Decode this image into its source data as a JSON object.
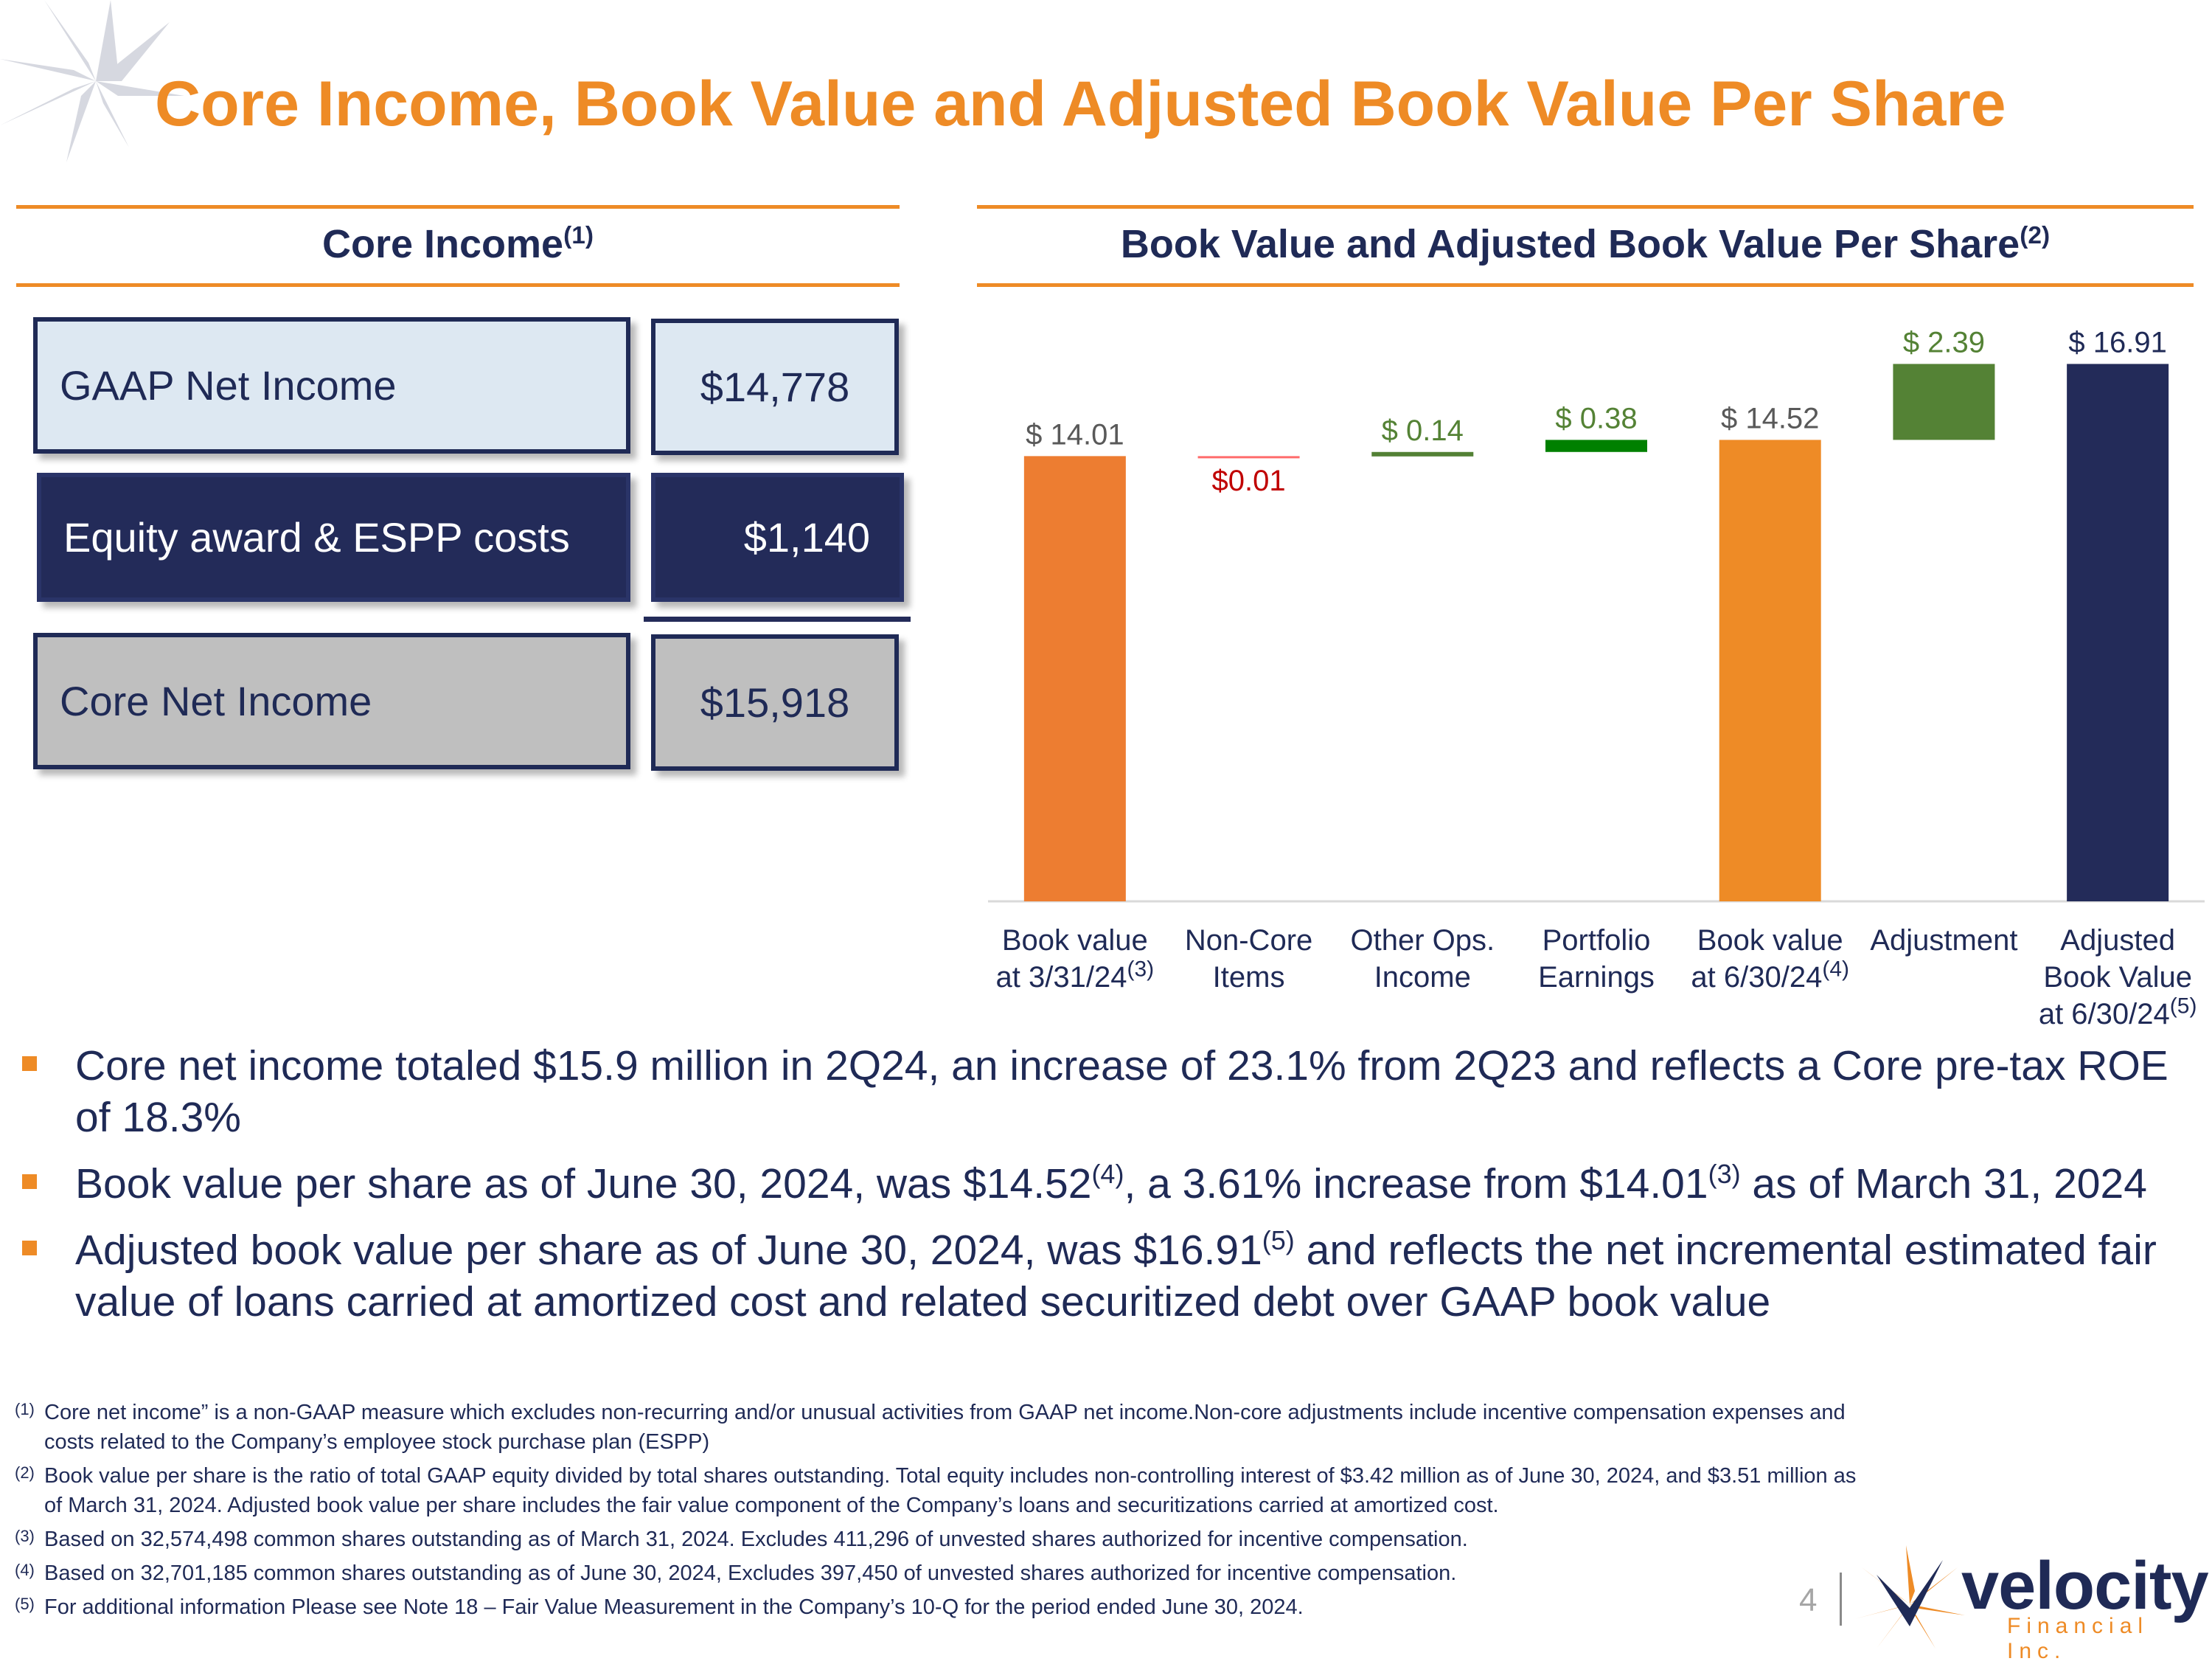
{
  "page": {
    "title": "Core Income, Book Value and Adjusted Book Value Per Share",
    "page_number": "4"
  },
  "core_income": {
    "heading": "Core Income",
    "heading_note": "(1)",
    "rows": [
      {
        "label": "GAAP Net Income",
        "value": "$14,778"
      },
      {
        "label": "Equity award & ESPP costs",
        "value": "$1,140"
      },
      {
        "label": "Core Net Income",
        "value": "$15,918"
      }
    ]
  },
  "book_value": {
    "heading": "Book Value and Adjusted Book Value Per Share",
    "heading_note": "(2)",
    "x_labels": [
      {
        "lines": [
          "Book value",
          "at 3/31/24"
        ],
        "note": "(3)"
      },
      {
        "lines": [
          "Non-Core",
          "Items"
        ],
        "note": ""
      },
      {
        "lines": [
          "Other Ops.",
          "Income"
        ],
        "note": ""
      },
      {
        "lines": [
          "Portfolio",
          "Earnings"
        ],
        "note": ""
      },
      {
        "lines": [
          "Book value",
          "at 6/30/24"
        ],
        "note": "(4)"
      },
      {
        "lines": [
          "Adjustment"
        ],
        "note": ""
      },
      {
        "lines": [
          "Adjusted",
          "Book Value",
          "at 6/30/24"
        ],
        "note": "(5)"
      }
    ]
  },
  "chart_data": {
    "type": "bar",
    "subtype": "waterfall",
    "title": "Book Value and Adjusted Book Value Per Share",
    "categories": [
      "Book value at 3/31/24",
      "Non-Core Items",
      "Other Ops. Income",
      "Portfolio Earnings",
      "Book value at 6/30/24",
      "Adjustment",
      "Adjusted Book Value at 6/30/24"
    ],
    "bars": [
      {
        "category": "Book value at 3/31/24",
        "kind": "total",
        "value": 14.01,
        "label": "$ 14.01",
        "color": "#ed7d31",
        "label_color": "#595959"
      },
      {
        "category": "Non-Core Items",
        "kind": "delta",
        "value": -0.01,
        "label": "$0.01",
        "color": "#ff6b6b",
        "label_color": "#c00000"
      },
      {
        "category": "Other Ops. Income",
        "kind": "delta",
        "value": 0.14,
        "label": "$ 0.14",
        "color": "#538135",
        "label_color": "#548235"
      },
      {
        "category": "Portfolio Earnings",
        "kind": "delta",
        "value": 0.38,
        "label": "$ 0.38",
        "color": "#008000",
        "label_color": "#548235"
      },
      {
        "category": "Book value at 6/30/24",
        "kind": "total",
        "value": 14.52,
        "label": "$ 14.52",
        "color": "#ee8b26",
        "label_color": "#595959"
      },
      {
        "category": "Adjustment",
        "kind": "delta",
        "value": 2.39,
        "label": "$ 2.39",
        "color": "#548235",
        "label_color": "#548235"
      },
      {
        "category": "Adjusted Book Value at 6/30/24",
        "kind": "total",
        "value": 16.91,
        "label": "$ 16.91",
        "color": "#232b59",
        "label_color": "#1f2a56"
      }
    ],
    "ylim": [
      0,
      17.5
    ],
    "grid": false,
    "legend": "none"
  },
  "bullets": [
    {
      "segments": [
        {
          "t": "Core net income totaled $15.9 million in 2Q24, an increase of 23.1% from 2Q23 and reflects a Core pre-tax ROE of 18.3%"
        }
      ]
    },
    {
      "segments": [
        {
          "t": "Book value per share as of June 30, 2024, was $14.52"
        },
        {
          "t": "(4)",
          "sup": true
        },
        {
          "t": ", a 3.61% increase from $14.01"
        },
        {
          "t": "(3)",
          "sup": true
        },
        {
          "t": " as of March 31, 2024"
        }
      ]
    },
    {
      "segments": [
        {
          "t": "Adjusted book value per share as of June 30, 2024, was $16.91"
        },
        {
          "t": "(5)",
          "sup": true
        },
        {
          "t": " and reflects the net incremental estimated fair value of loans carried at amortized cost and related securitized debt over GAAP book value"
        }
      ]
    }
  ],
  "footnotes": [
    {
      "num": "(1)",
      "text": "Core net income” is a non-GAAP measure which excludes non-recurring and/or unusual activities from GAAP net income.Non-core adjustments include incentive compensation expenses and costs related to the Company’s employee stock purchase plan (ESPP)"
    },
    {
      "num": "(2)",
      "text": "Book value per share is the ratio of total GAAP equity divided by total shares outstanding. Total equity includes non-controlling interest of $3.42 million as of June 30, 2024, and $3.51 million as of March 31, 2024. Adjusted book value per share includes the fair value component of the Company’s loans and securitizations carried at amortized cost."
    },
    {
      "num": "(3)",
      "text": "Based on 32,574,498 common shares outstanding as of March 31, 2024. Excludes 411,296 of unvested shares authorized for incentive compensation."
    },
    {
      "num": "(4)",
      "text": "Based on 32,701,185 common shares outstanding as of June 30, 2024, Excludes 397,450 of unvested shares authorized for incentive compensation."
    },
    {
      "num": "(5)",
      "text": "For additional information Please see Note 18 – Fair Value Measurement in the Company’s 10-Q for the period ended June 30, 2024."
    }
  ],
  "logo": {
    "word": "velocity",
    "sub": "Financial Inc."
  },
  "colors": {
    "accent": "#ee8b26",
    "navy": "#1f2a56",
    "light_blue": "#dde8f2",
    "grey": "#bfbfbf"
  }
}
